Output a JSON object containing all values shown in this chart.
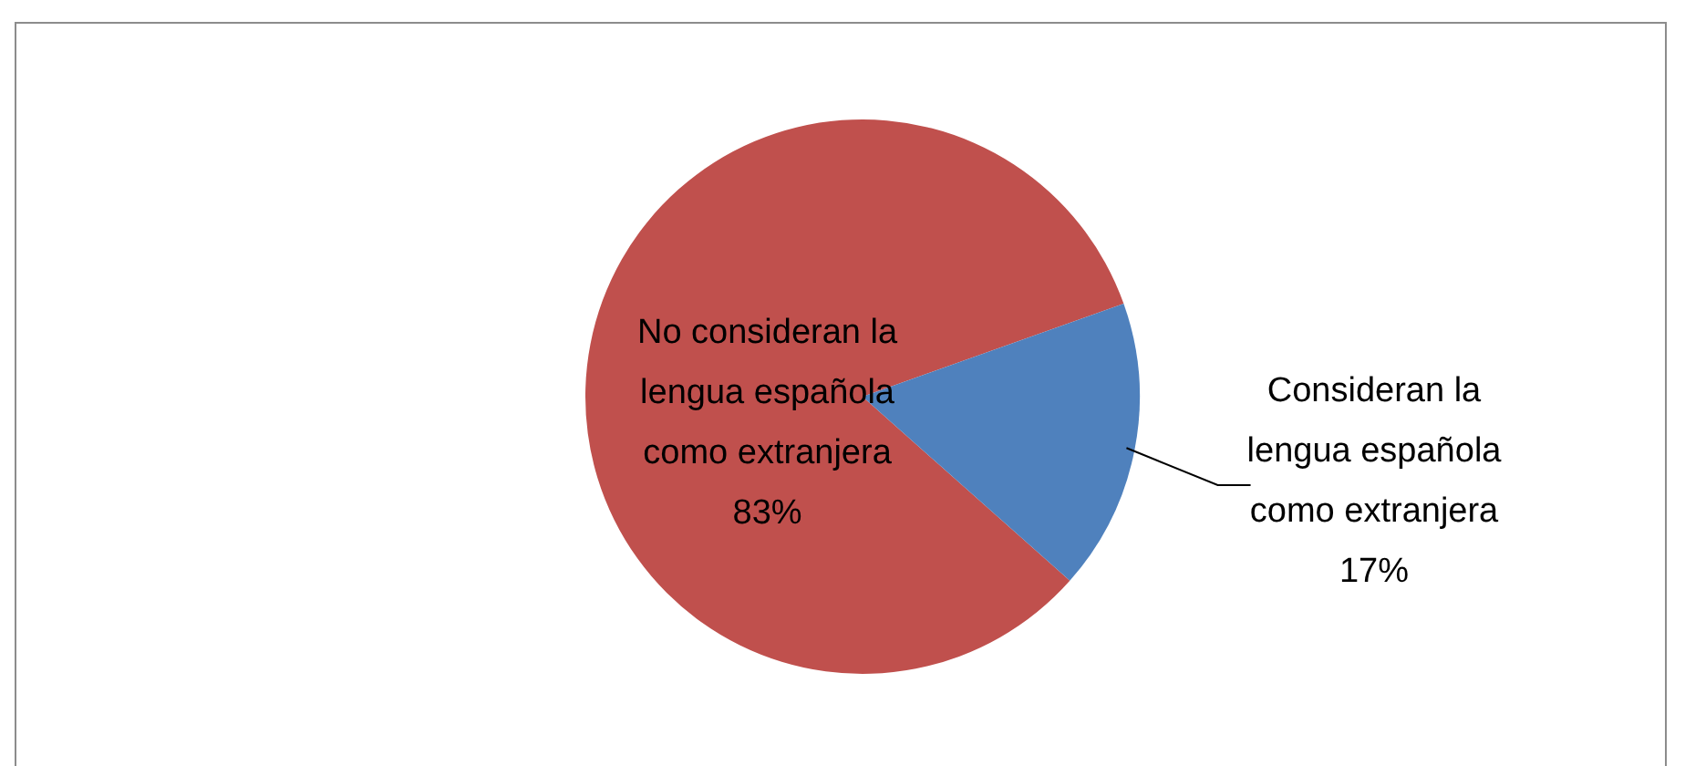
{
  "chart_data": {
    "type": "pie",
    "categories": [
      "No consideran la lengua española como extranjera",
      "Consideran la lengua española como extranjera"
    ],
    "values": [
      83,
      17
    ],
    "colors": [
      "#c0504d",
      "#4f81bd"
    ],
    "value_labels": [
      "83%",
      "17%"
    ],
    "legend": false
  }
}
